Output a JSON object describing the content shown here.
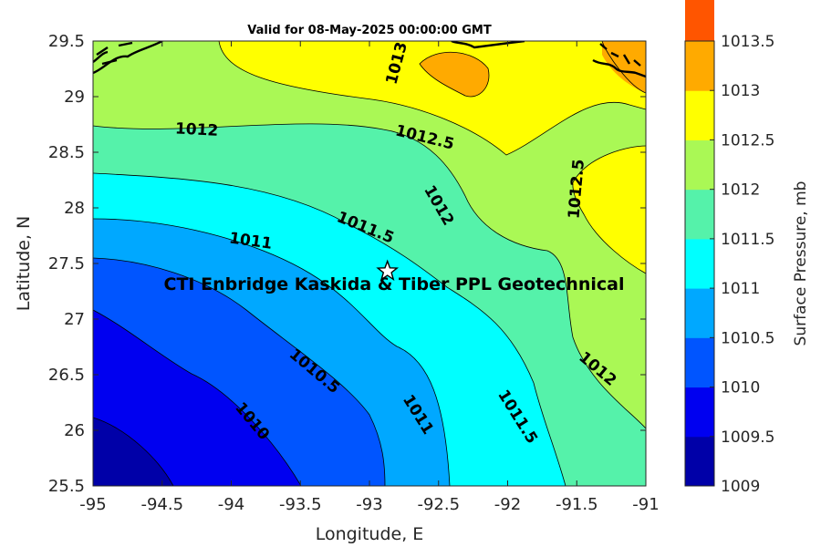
{
  "title": "Valid for 08-May-2025 00:00:00 GMT",
  "x_axis": {
    "label": "Longitude, E",
    "range": [
      -95,
      -91
    ],
    "ticks": [
      "-95",
      "-94.5",
      "-94",
      "-93.5",
      "-93",
      "-92.5",
      "-92",
      "-91.5",
      "-91"
    ]
  },
  "y_axis": {
    "label": "Latitude, N",
    "range": [
      25.5,
      29.5
    ],
    "ticks": [
      "25.5",
      "26",
      "26.5",
      "27",
      "27.5",
      "28",
      "28.5",
      "29",
      "29.5"
    ]
  },
  "colorbar": {
    "label": "Surface Pressure, mb",
    "levels": [
      "1009",
      "1009.5",
      "1010",
      "1010.5",
      "1011",
      "1011.5",
      "1012",
      "1012.5",
      "1013",
      "1013.5"
    ],
    "colors": [
      "#0000a8",
      "#0000f0",
      "#0055ff",
      "#00a8ff",
      "#00ffff",
      "#55f2aa",
      "#aaf855",
      "#ffff00",
      "#ffaa00",
      "#ff5500"
    ]
  },
  "site": {
    "label": "CTI Enbridge  Kaskida & Tiber PPL Geotechnical",
    "lon": -92.87,
    "lat": 27.43,
    "marker": "star-icon"
  },
  "contour_labels": [
    {
      "text": "1012",
      "lon": -94.25,
      "lat": 28.7
    },
    {
      "text": "1012.5",
      "lon": -92.6,
      "lat": 28.63
    },
    {
      "text": "1013",
      "lon": -92.8,
      "lat": 29.3
    },
    {
      "text": "1012.5",
      "lon": -91.5,
      "lat": 28.17
    },
    {
      "text": "1012",
      "lon": -92.5,
      "lat": 28.02
    },
    {
      "text": "1011.5",
      "lon": -93.03,
      "lat": 27.82
    },
    {
      "text": "1011",
      "lon": -93.86,
      "lat": 27.7
    },
    {
      "text": "1012",
      "lon": -91.35,
      "lat": 26.55
    },
    {
      "text": "1011.5",
      "lon": -91.93,
      "lat": 26.12
    },
    {
      "text": "1011",
      "lon": -92.65,
      "lat": 26.14
    },
    {
      "text": "1010.5",
      "lon": -93.4,
      "lat": 26.53
    },
    {
      "text": "1010",
      "lon": -93.85,
      "lat": 26.08
    }
  ],
  "chart_data": {
    "type": "heatmap",
    "title": "Valid for 08-May-2025 00:00:00 GMT",
    "xlabel": "Longitude, E",
    "ylabel": "Latitude, N",
    "xlim": [
      -95,
      -91
    ],
    "ylim": [
      25.5,
      29.5
    ],
    "colorbar_label": "Surface Pressure, mb",
    "colorbar_range": [
      1009,
      1013.5
    ],
    "contour_levels": [
      1010,
      1010.5,
      1011,
      1011.5,
      1012,
      1012.5,
      1013
    ],
    "legend_position": "right"
  }
}
